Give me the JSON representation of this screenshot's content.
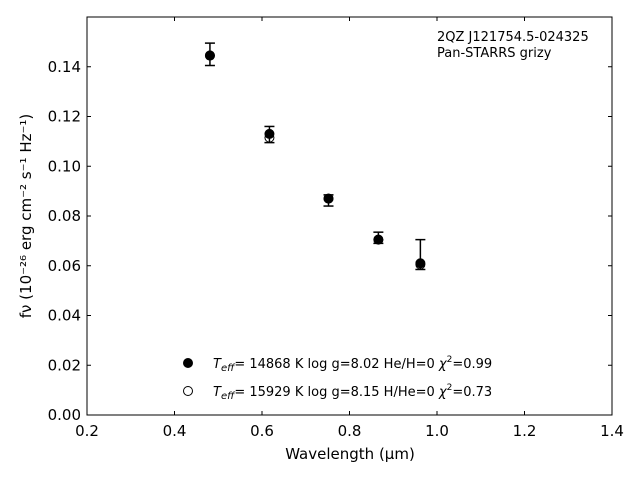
{
  "chart_data": {
    "type": "scatter",
    "title": "",
    "xlabel": "Wavelength (μm)",
    "ylabel": "fν (10⁻²⁶ erg cm⁻² s⁻¹ Hz⁻¹)",
    "xlim": [
      0.2,
      1.4
    ],
    "ylim": [
      0.0,
      0.16
    ],
    "xticks": [
      0.2,
      0.4,
      0.6,
      0.8,
      1.0,
      1.2,
      1.4
    ],
    "xtick_labels": [
      "0.2",
      "0.4",
      "0.6",
      "0.8",
      "1.0",
      "1.2",
      "1.4"
    ],
    "yticks": [
      0.0,
      0.02,
      0.04,
      0.06,
      0.08,
      0.1,
      0.12,
      0.14
    ],
    "ytick_labels": [
      "0.00",
      "0.02",
      "0.04",
      "0.06",
      "0.08",
      "0.10",
      "0.12",
      "0.14"
    ],
    "annotation": [
      "2QZ J121754.5-024325",
      "Pan-STARRS grizy"
    ],
    "observed": {
      "x": [
        0.481,
        0.617,
        0.752,
        0.866,
        0.962
      ],
      "y": [
        0.145,
        0.1125,
        0.0875,
        0.071,
        0.0605
      ],
      "yerr_low": [
        0.0045,
        0.003,
        0.0035,
        0.002,
        0.002
      ],
      "yerr_high": [
        0.0045,
        0.0035,
        0.001,
        0.0025,
        0.01
      ]
    },
    "series": [
      {
        "name": "T_eff= 14868 K  log g=8.02  He/H=0  χ²=0.99",
        "label_parts": {
          "t": "T",
          "sub": "eff",
          "rest": "= 14868 K  log g=8.02  He/H=0  ",
          "chi": "χ",
          "chi_val": "=0.99"
        },
        "marker": "filled",
        "x": [
          0.481,
          0.617,
          0.752,
          0.866,
          0.962
        ],
        "y": [
          0.1445,
          0.113,
          0.087,
          0.0705,
          0.061
        ]
      },
      {
        "name": "T_eff= 15929 K  log g=8.15  H/He=0  χ²=0.73",
        "label_parts": {
          "t": "T",
          "sub": "eff",
          "rest": "= 15929 K  log g=8.15  H/He=0  ",
          "chi": "χ",
          "chi_val": "=0.73"
        },
        "marker": "open",
        "x": [
          0.481,
          0.617,
          0.752,
          0.866,
          0.962
        ],
        "y": [
          0.1445,
          0.1115,
          0.087,
          0.0705,
          0.0605
        ]
      }
    ],
    "legend_position": "lower-center",
    "grid": false
  },
  "colors": {
    "marker": "#000000",
    "axes": "#000000",
    "background": "#ffffff"
  }
}
